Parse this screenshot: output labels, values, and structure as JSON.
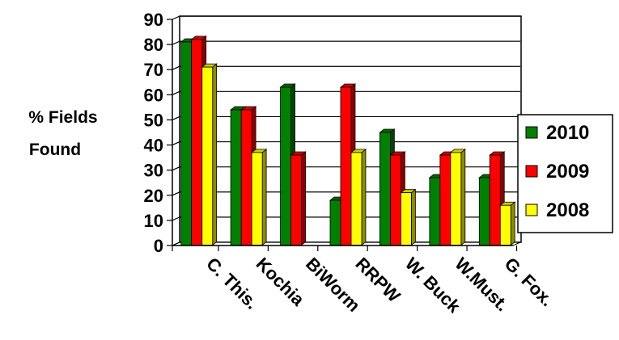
{
  "chart_data": {
    "type": "bar",
    "ylabel_lines": [
      "% Fields",
      "Found"
    ],
    "xlabel": "",
    "ylim": [
      0,
      90
    ],
    "yticks": [
      "0",
      "10",
      "20",
      "30",
      "40",
      "50",
      "60",
      "70",
      "80",
      "90"
    ],
    "categories": [
      "C. This.",
      "Kochia",
      "BiWorm",
      "RRPW",
      "W. Buck",
      "W.Must.",
      "G. Fox."
    ],
    "series": [
      {
        "name": "2010",
        "color": "#008000",
        "values": [
          81,
          54,
          63,
          18,
          45,
          27,
          27
        ]
      },
      {
        "name": "2009",
        "color": "#ff0000",
        "values": [
          82,
          54,
          36,
          63,
          36,
          36,
          36
        ]
      },
      {
        "name": "2008",
        "color": "#ffff00",
        "values": [
          71,
          37,
          0,
          37,
          21,
          37,
          16
        ]
      }
    ],
    "grid": true,
    "legend_position": "right",
    "style": "3d-clustered-bar"
  }
}
